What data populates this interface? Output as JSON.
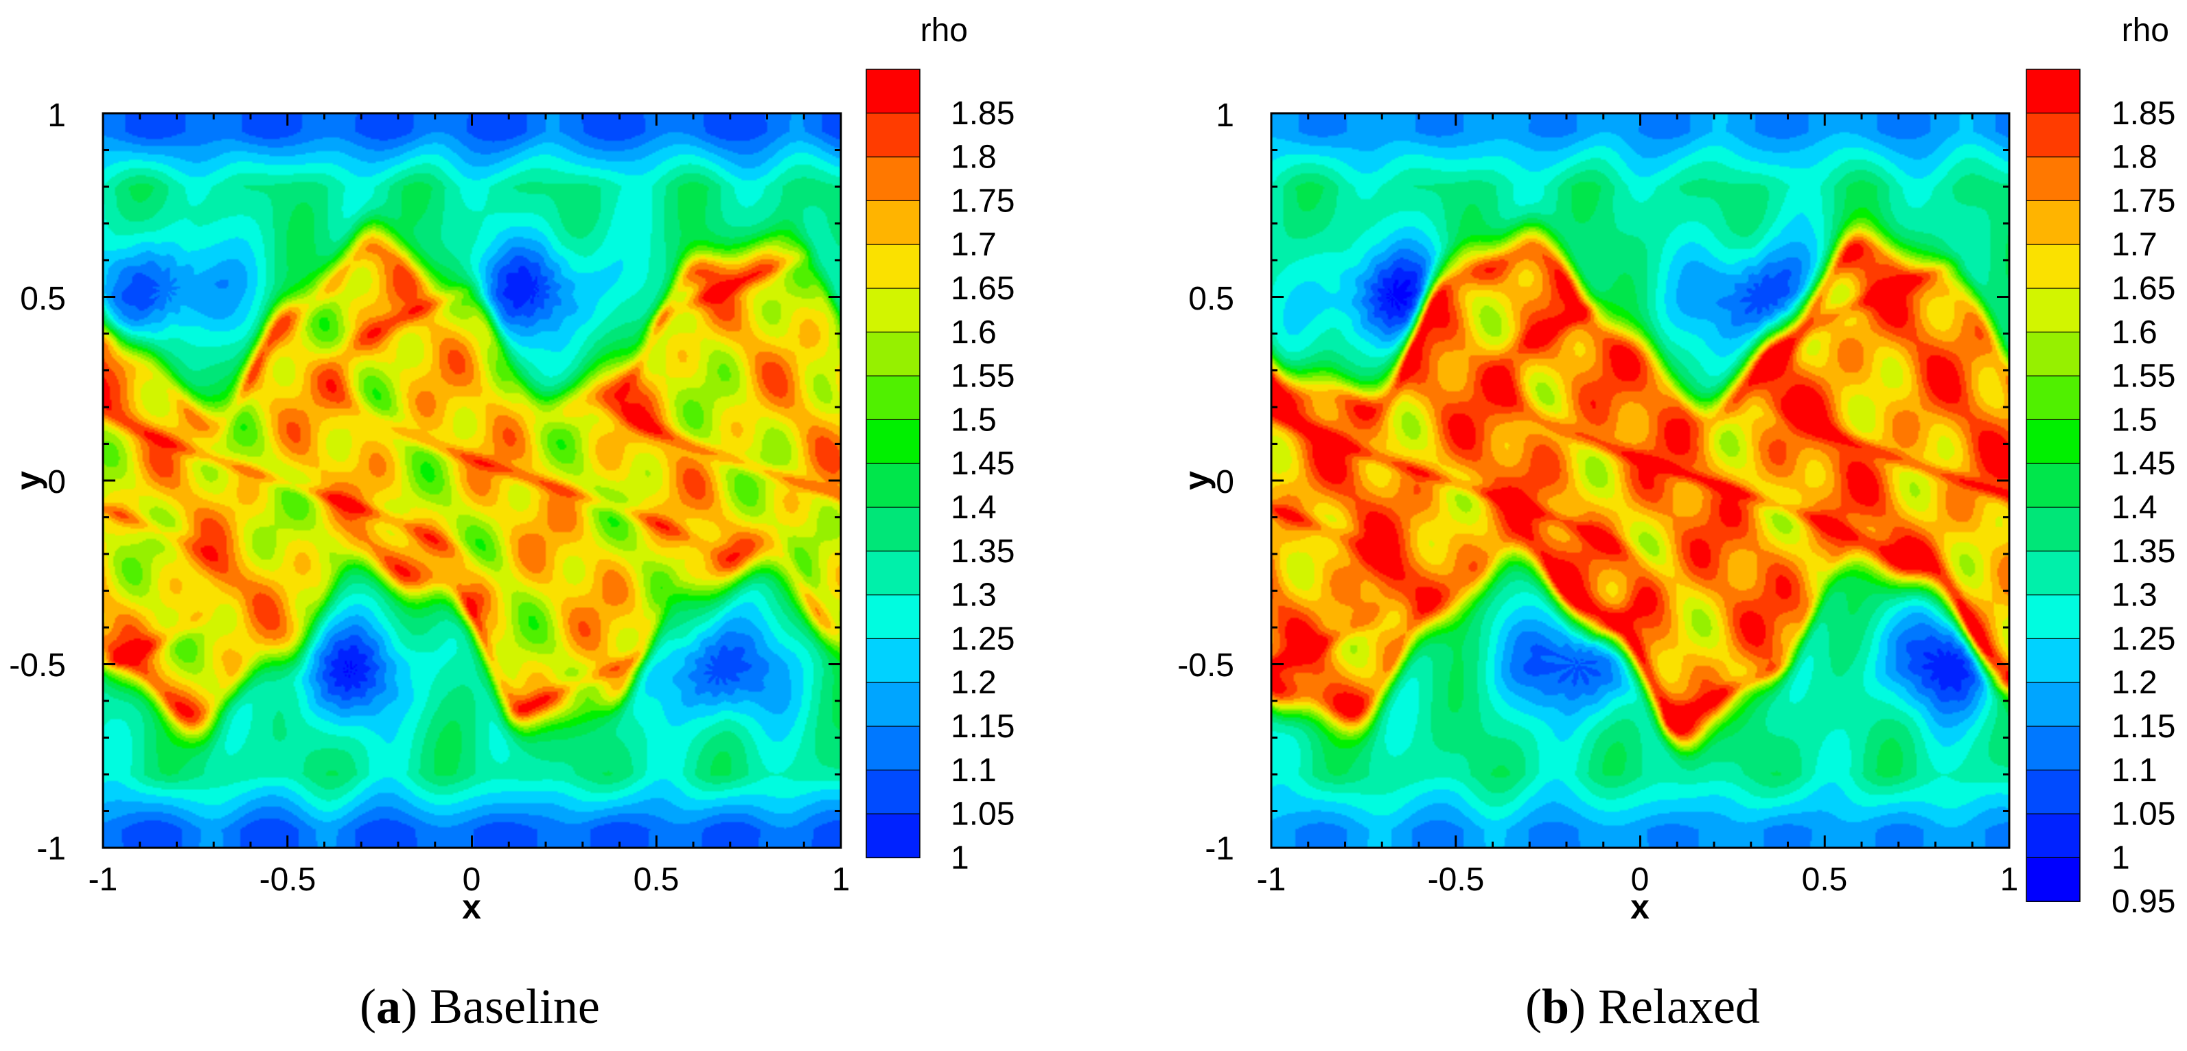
{
  "chart_data": [
    {
      "type": "heatmap",
      "caption_letter": "a",
      "caption_text": "Baseline",
      "xlabel": "x",
      "ylabel": "y",
      "xlim": [
        -1,
        1
      ],
      "ylim": [
        -1,
        1
      ],
      "x_ticks": [
        "-1",
        "-0.5",
        "0",
        "0.5",
        "1"
      ],
      "y_ticks": [
        "1",
        "0.5",
        "0",
        "-0.5",
        "-1"
      ],
      "colorbar": {
        "title": "rho",
        "levels": [
          "1.85",
          "1.8",
          "1.75",
          "1.7",
          "1.65",
          "1.6",
          "1.55",
          "1.5",
          "1.45",
          "1.4",
          "1.35",
          "1.3",
          "1.25",
          "1.2",
          "1.15",
          "1.1",
          "1.05",
          "1"
        ],
        "range": [
          1.0,
          1.875
        ]
      },
      "features": {
        "vortex_centers_upper": [
          [
            -0.83,
            0.52
          ],
          [
            0.17,
            0.52
          ]
        ],
        "vortex_centers_lower": [
          [
            -0.33,
            -0.52
          ],
          [
            0.67,
            -0.52
          ]
        ],
        "vortex_min_rho": 1.05,
        "background_outer_rho": 1.03,
        "core_band_rho": 1.64,
        "max_rho": 1.875
      }
    },
    {
      "type": "heatmap",
      "caption_letter": "b",
      "caption_text": "Relaxed",
      "xlabel": "x",
      "ylabel": "y",
      "xlim": [
        -1,
        1
      ],
      "ylim": [
        -1,
        1
      ],
      "x_ticks": [
        "-1",
        "-0.5",
        "0",
        "0.5",
        "1"
      ],
      "y_ticks": [
        "1",
        "0.5",
        "0",
        "-0.5",
        "-1"
      ],
      "colorbar": {
        "title": "rho",
        "levels": [
          "1.85",
          "1.8",
          "1.75",
          "1.7",
          "1.65",
          "1.6",
          "1.55",
          "1.5",
          "1.45",
          "1.4",
          "1.35",
          "1.3",
          "1.25",
          "1.2",
          "1.15",
          "1.1",
          "1.05",
          "1",
          "0.95"
        ],
        "range": [
          0.925,
          1.875
        ]
      },
      "features": {
        "vortex_centers_upper": [
          [
            -0.67,
            0.5
          ],
          [
            0.33,
            0.5
          ]
        ],
        "vortex_centers_lower": [
          [
            -0.17,
            -0.5
          ],
          [
            0.83,
            -0.5
          ]
        ],
        "vortex_min_rho": 1.02,
        "background_outer_rho": 1.1,
        "core_band_rho": 1.72,
        "max_rho": 1.86
      }
    }
  ],
  "colors": [
    "#0000ff",
    "#0022ff",
    "#004bff",
    "#0078ff",
    "#00a5ff",
    "#00d2ff",
    "#00fce0",
    "#00f0aa",
    "#00e678",
    "#00e64b",
    "#00f000",
    "#50f000",
    "#96f000",
    "#d2f500",
    "#fae100",
    "#ffb400",
    "#ff7800",
    "#ff3c00",
    "#ff0000"
  ]
}
